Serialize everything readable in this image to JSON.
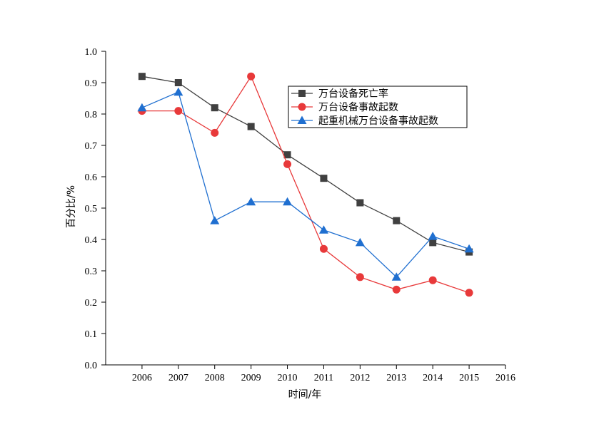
{
  "chart_data": {
    "type": "line",
    "xlabel": "时间/年",
    "ylabel": "百分比/%",
    "xlim": [
      2005,
      2016
    ],
    "ylim": [
      0.0,
      1.0
    ],
    "x_ticks": [
      "2006",
      "2007",
      "2008",
      "2009",
      "2010",
      "2011",
      "2012",
      "2013",
      "2014",
      "2015",
      "2016"
    ],
    "y_ticks": [
      "0.0",
      "0.1",
      "0.2",
      "0.3",
      "0.4",
      "0.5",
      "0.6",
      "0.7",
      "0.8",
      "0.9",
      "1.0"
    ],
    "legend_position": "top-right",
    "x": [
      2006,
      2007,
      2008,
      2009,
      2010,
      2011,
      2012,
      2013,
      2014,
      2015
    ],
    "series": [
      {
        "name": "万台设备死亡率",
        "color": "#404040",
        "marker": "square",
        "values": [
          0.92,
          0.9,
          0.82,
          0.76,
          0.67,
          0.595,
          0.517,
          0.46,
          0.39,
          0.36
        ]
      },
      {
        "name": "万台设备事故起数",
        "color": "#e8393a",
        "marker": "circle",
        "values": [
          0.81,
          0.81,
          0.74,
          0.92,
          0.64,
          0.37,
          0.28,
          0.24,
          0.27,
          0.23
        ]
      },
      {
        "name": "起重机械万台设备事故起数",
        "color": "#1f6fd0",
        "marker": "triangle",
        "values": [
          0.82,
          0.87,
          0.46,
          0.52,
          0.52,
          0.43,
          0.39,
          0.28,
          0.41,
          0.37
        ]
      }
    ]
  }
}
